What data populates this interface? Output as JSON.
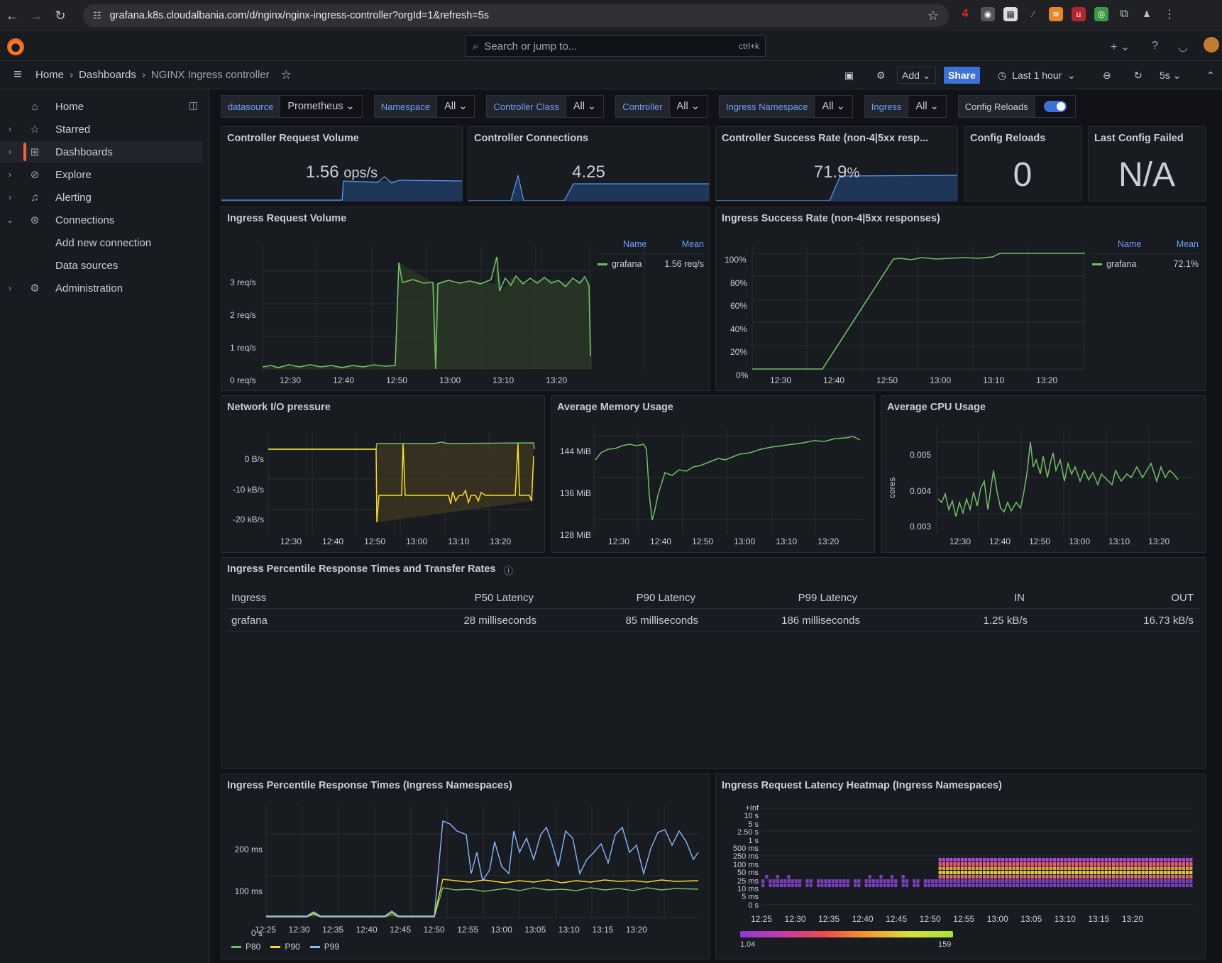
{
  "browser": {
    "url": "grafana.k8s.cloudalbania.com/d/nginx/nginx-ingress-controller?orgId=1&refresh=5s",
    "badge": "4"
  },
  "topbar": {
    "search_placeholder": "Search or jump to...",
    "search_shortcut": "ctrl+k"
  },
  "breadcrumb": {
    "home": "Home",
    "dashboards": "Dashboards",
    "current": "NGINX Ingress controller"
  },
  "toolbar": {
    "add": "Add",
    "share": "Share",
    "time_range": "Last 1 hour",
    "refresh": "5s"
  },
  "sidebar": {
    "items": [
      {
        "label": "Home",
        "icon": "home-icon"
      },
      {
        "label": "Starred",
        "icon": "star-icon"
      },
      {
        "label": "Dashboards",
        "icon": "grid-icon"
      },
      {
        "label": "Explore",
        "icon": "compass-icon"
      },
      {
        "label": "Alerting",
        "icon": "bell-icon"
      },
      {
        "label": "Connections",
        "icon": "link-icon"
      }
    ],
    "sub": [
      "Add new connection",
      "Data sources"
    ],
    "admin": "Administration"
  },
  "variables": [
    {
      "label": "datasource",
      "value": "Prometheus"
    },
    {
      "label": "Namespace",
      "value": "All"
    },
    {
      "label": "Controller Class",
      "value": "All"
    },
    {
      "label": "Controller",
      "value": "All"
    },
    {
      "label": "Ingress Namespace",
      "value": "All"
    },
    {
      "label": "Ingress",
      "value": "All"
    }
  ],
  "config_reloads_toggle": {
    "label": "Config Reloads",
    "on": true
  },
  "stats": {
    "req_volume": {
      "title": "Controller Request Volume",
      "value": "1.56",
      "unit": "ops/s"
    },
    "connections": {
      "title": "Controller Connections",
      "value": "4.25"
    },
    "success": {
      "title": "Controller Success Rate (non-4|5xx resp...",
      "value": "71.9",
      "unit": "%"
    },
    "reloads": {
      "title": "Config Reloads",
      "value": "0"
    },
    "last_failed": {
      "title": "Last Config Failed",
      "value": "N/A"
    }
  },
  "ingress_volume": {
    "title": "Ingress Request Volume",
    "legend": {
      "name_h": "Name",
      "mean_h": "Mean",
      "name": "grafana",
      "mean": "1.56 req/s"
    },
    "y_ticks": [
      "3 req/s",
      "2 req/s",
      "1 req/s",
      "0 req/s"
    ],
    "x_ticks": [
      "12:30",
      "12:40",
      "12:50",
      "13:00",
      "13:10",
      "13:20"
    ]
  },
  "ingress_success": {
    "title": "Ingress Success Rate (non-4|5xx responses)",
    "legend": {
      "name_h": "Name",
      "mean_h": "Mean",
      "name": "grafana",
      "mean": "72.1%"
    },
    "y_ticks": [
      "100%",
      "80%",
      "60%",
      "40%",
      "20%",
      "0%"
    ],
    "x_ticks": [
      "12:30",
      "12:40",
      "12:50",
      "13:00",
      "13:10",
      "13:20"
    ]
  },
  "network": {
    "title": "Network I/O pressure",
    "y_ticks": [
      "0 B/s",
      "-10 kB/s",
      "-20 kB/s"
    ],
    "x_ticks": [
      "12:30",
      "12:40",
      "12:50",
      "13:00",
      "13:10",
      "13:20"
    ]
  },
  "memory": {
    "title": "Average Memory Usage",
    "y_ticks": [
      "144 MiB",
      "136 MiB",
      "128 MiB"
    ],
    "x_ticks": [
      "12:30",
      "12:40",
      "12:50",
      "13:00",
      "13:10",
      "13:20"
    ]
  },
  "cpu": {
    "title": "Average CPU Usage",
    "ylabel": "cores",
    "y_ticks": [
      "0.005",
      "0.004",
      "0.003"
    ],
    "x_ticks": [
      "12:30",
      "12:40",
      "12:50",
      "13:00",
      "13:10",
      "13:20"
    ]
  },
  "table": {
    "title": "Ingress Percentile Response Times and Transfer Rates",
    "headers": [
      "Ingress",
      "P50 Latency",
      "P90 Latency",
      "P99 Latency",
      "IN",
      "OUT"
    ],
    "rows": [
      [
        "grafana",
        "28 milliseconds",
        "85 milliseconds",
        "186 milliseconds",
        "1.25 kB/s",
        "16.73 kB/s"
      ]
    ]
  },
  "percentile": {
    "title": "Ingress Percentile Response Times (Ingress Namespaces)",
    "y_ticks": [
      "200 ms",
      "100 ms",
      "0 s"
    ],
    "x_ticks": [
      "12:25",
      "12:30",
      "12:35",
      "12:40",
      "12:45",
      "12:50",
      "12:55",
      "13:00",
      "13:05",
      "13:10",
      "13:15",
      "13:20"
    ],
    "legend": [
      "P80",
      "P90",
      "P99"
    ]
  },
  "heatmap": {
    "title": "Ingress Request Latency Heatmap (Ingress Namespaces)",
    "y_ticks": [
      "+Inf",
      "10 s",
      "5 s",
      "2.50 s",
      "1 s",
      "500 ms",
      "250 ms",
      "100 ms",
      "50 ms",
      "25 ms",
      "10 ms",
      "5 ms",
      "0 s"
    ],
    "x_ticks": [
      "12:25",
      "12:30",
      "12:35",
      "12:40",
      "12:45",
      "12:50",
      "12:55",
      "13:00",
      "13:05",
      "13:10",
      "13:15",
      "13:20"
    ],
    "scale_min": "1.04",
    "scale_max": "159"
  },
  "colors": {
    "green": "#73bf69",
    "yellow": "#fade2a",
    "blue": "#8ab8ff",
    "accent": "#3d71d9",
    "orange": "#f55f3e"
  }
}
